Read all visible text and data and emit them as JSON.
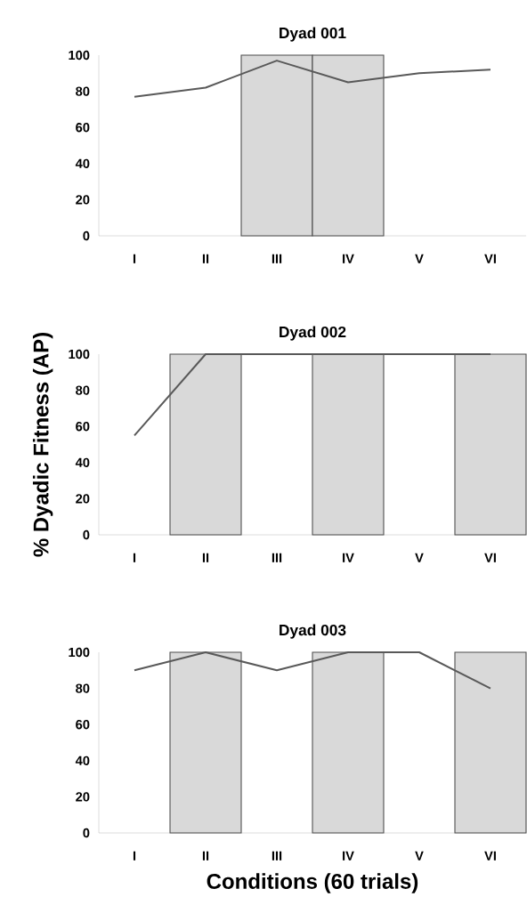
{
  "chart_data": [
    {
      "type": "bar",
      "title": "Dyad 001",
      "categories": [
        "I",
        "II",
        "III",
        "IV",
        "V",
        "VI"
      ],
      "ylim": [
        0,
        100
      ],
      "yticks": [
        0,
        20,
        40,
        60,
        80,
        100
      ],
      "series": [
        {
          "type": "bar",
          "color": "#d9d9d9",
          "values": [
            null,
            null,
            100,
            100,
            null,
            null
          ]
        },
        {
          "type": "line",
          "color": "#595959",
          "values": [
            77,
            82,
            97,
            85,
            90,
            92
          ]
        }
      ]
    },
    {
      "type": "bar",
      "title": "Dyad 002",
      "ylabel": "% Dyadic Fitness (AP)",
      "categories": [
        "I",
        "II",
        "III",
        "IV",
        "V",
        "VI"
      ],
      "ylim": [
        0,
        100
      ],
      "yticks": [
        0,
        20,
        40,
        60,
        80,
        100
      ],
      "series": [
        {
          "type": "bar",
          "color": "#d9d9d9",
          "values": [
            null,
            100,
            null,
            100,
            null,
            100
          ]
        },
        {
          "type": "line",
          "color": "#595959",
          "values": [
            55,
            100,
            100,
            100,
            100,
            100
          ]
        }
      ]
    },
    {
      "type": "bar",
      "title": "Dyad 003",
      "xlabel": "Conditions (60 trials)",
      "categories": [
        "I",
        "II",
        "III",
        "IV",
        "V",
        "VI"
      ],
      "ylim": [
        0,
        100
      ],
      "yticks": [
        0,
        20,
        40,
        60,
        80,
        100
      ],
      "series": [
        {
          "type": "bar",
          "color": "#d9d9d9",
          "values": [
            null,
            100,
            null,
            100,
            null,
            100
          ]
        },
        {
          "type": "line",
          "color": "#595959",
          "values": [
            90,
            100,
            90,
            100,
            100,
            80
          ]
        }
      ]
    }
  ]
}
